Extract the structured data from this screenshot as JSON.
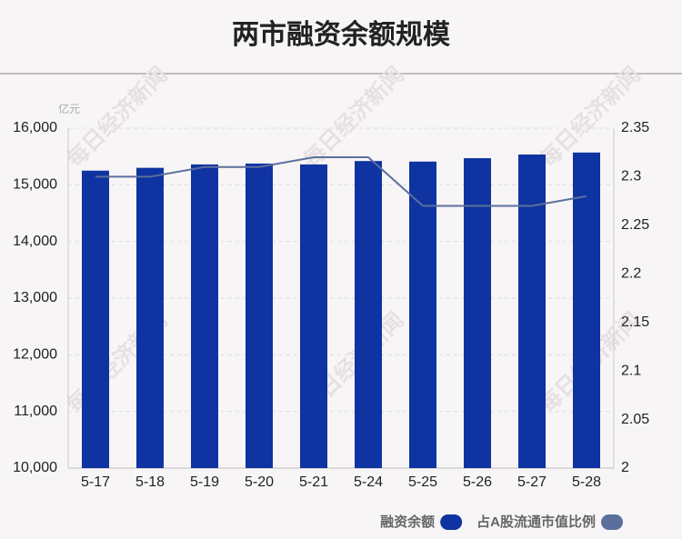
{
  "chart_data": {
    "type": "bar_line",
    "title": "两市融资余额规模",
    "unit": "亿元",
    "watermark": "每日经济新闻",
    "categories": [
      "5-17",
      "5-18",
      "5-19",
      "5-20",
      "5-21",
      "5-24",
      "5-25",
      "5-26",
      "5-27",
      "5-28"
    ],
    "series": [
      {
        "name": "融资余额",
        "color": "#0f33a0",
        "type": "bar",
        "values": [
          15250,
          15300,
          15360,
          15375,
          15360,
          15420,
          15410,
          15470,
          15535,
          15570
        ]
      },
      {
        "name": "占A股流通市值比例",
        "color": "#5b6f9c",
        "type": "line",
        "axis": "y2",
        "values": [
          2.3,
          2.3,
          2.31,
          2.31,
          2.32,
          2.32,
          2.27,
          2.27,
          2.27,
          2.28
        ]
      }
    ],
    "ylim": [
      10000,
      16000
    ],
    "yticks": [
      {
        "value": 10000,
        "label": "10,000"
      },
      {
        "value": 11000,
        "label": "11,000"
      },
      {
        "value": 12000,
        "label": "12,000"
      },
      {
        "value": 13000,
        "label": "13,000"
      },
      {
        "value": 14000,
        "label": "14,000"
      },
      {
        "value": 15000,
        "label": "15,000"
      },
      {
        "value": 16000,
        "label": "16,000"
      }
    ],
    "y2lim": [
      2,
      2.35
    ],
    "y2ticks": [
      2,
      2.05,
      2.1,
      2.15,
      2.2,
      2.25,
      2.3,
      2.35
    ],
    "grid": true
  }
}
